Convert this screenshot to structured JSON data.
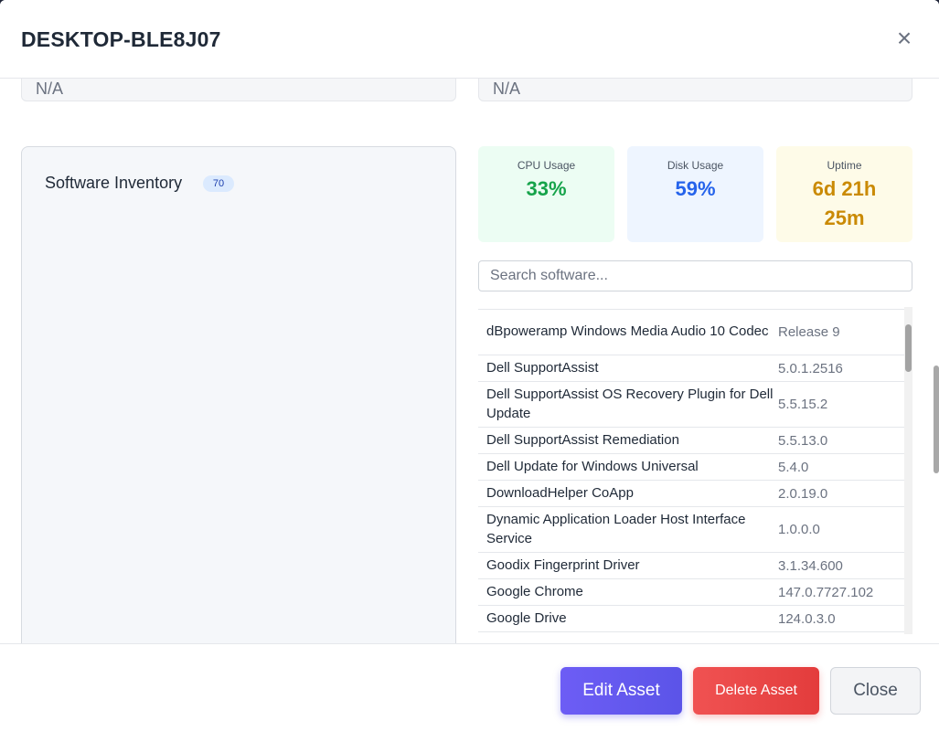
{
  "modal": {
    "title": "DESKTOP-BLE8J07",
    "close_icon": "×"
  },
  "top_fields": {
    "left_value": "N/A",
    "right_value": "N/A"
  },
  "inventory": {
    "title": "Software Inventory",
    "count": "70"
  },
  "stats": {
    "cpu": {
      "label": "CPU Usage",
      "value": "33%",
      "color": "#16a34a"
    },
    "disk": {
      "label": "Disk Usage",
      "value": "59%",
      "color": "#2563eb"
    },
    "uptime": {
      "label": "Uptime",
      "value": "6d 21h 25m",
      "color": "#ca8a04"
    }
  },
  "search": {
    "placeholder": "Search software..."
  },
  "software": [
    {
      "name": "dBpoweramp Windows Media Audio 10 Codec",
      "version": "Release 9"
    },
    {
      "name": "Dell SupportAssist",
      "version": "5.0.1.2516"
    },
    {
      "name": "Dell SupportAssist OS Recovery Plugin for Dell Update",
      "version": "5.5.15.2"
    },
    {
      "name": "Dell SupportAssist Remediation",
      "version": "5.5.13.0"
    },
    {
      "name": "Dell Update for Windows Universal",
      "version": "5.4.0"
    },
    {
      "name": "DownloadHelper CoApp",
      "version": "2.0.19.0"
    },
    {
      "name": "Dynamic Application Loader Host Interface Service",
      "version": "1.0.0.0"
    },
    {
      "name": "Goodix Fingerprint Driver",
      "version": "3.1.34.600"
    },
    {
      "name": "Google Chrome",
      "version": "147.0.7727.102"
    },
    {
      "name": "Google Drive",
      "version": "124.0.3.0"
    }
  ],
  "footer": {
    "edit_label": "Edit Asset",
    "delete_label": "Delete Asset",
    "close_label": "Close"
  }
}
